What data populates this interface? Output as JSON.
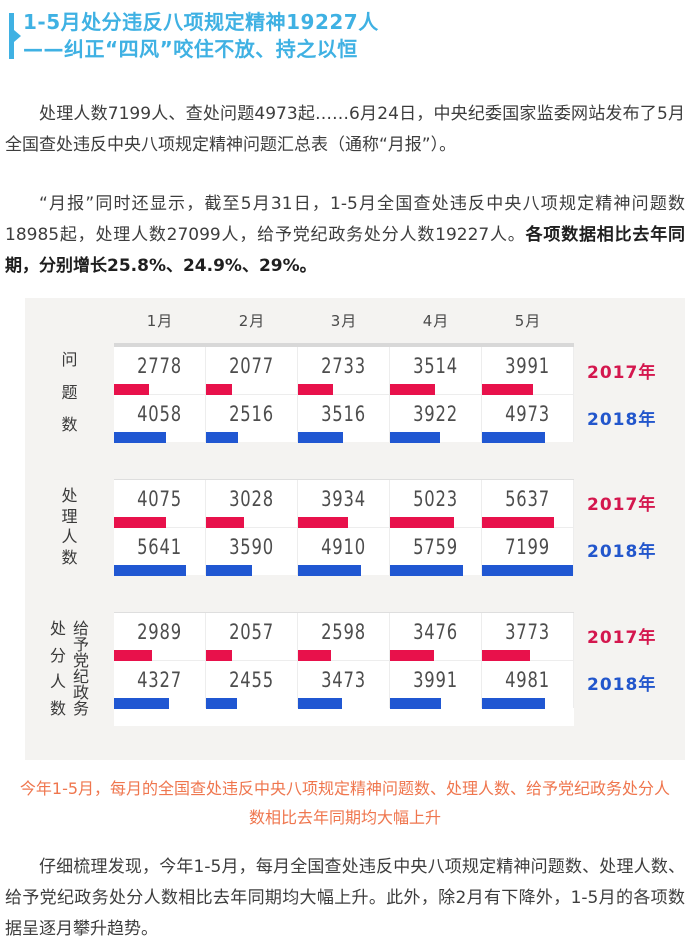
{
  "header": {
    "line1": "1-5月处分违反八项规定精神19227人",
    "line2": "——纠正“四风”咬住不放、持之以恒"
  },
  "paragraphs": {
    "p1": "处理人数7199人、查处问题4973起……6月24日，中央纪委国家监委网站发布了5月全国查处违反中央八项规定精神问题汇总表（通称“月报”）。",
    "p2_normal": "“月报”同时还显示，截至5月31日，1-5月全国查处违反中央八项规定精神问题数18985起，处理人数27099人，给予党纪政务处分人数19227人。",
    "p2_bold": "各项数据相比去年同期，分别增长25.8%、24.9%、29%。",
    "caption": "今年1-5月，每月的全国查处违反中央八项规定精神问题数、处理人数、给予党纪政务处分人数相比去年同期均大幅上升",
    "p3": "仔细梳理发现，今年1-5月，每月全国查处违反中央八项规定精神问题数、处理人数、给予党纪政务处分人数相比去年同期均大幅上升。此外，除2月有下降外，1-5月的各项数据呈逐月攀升趋势。"
  },
  "chart_data": {
    "type": "bar",
    "months": [
      "1月",
      "2月",
      "3月",
      "4月",
      "5月"
    ],
    "series_labels": {
      "red": "2017年",
      "blue": "2018年"
    },
    "colors": {
      "red": "#e8114b",
      "blue": "#2057d2",
      "red_text": "#d4174e",
      "blue_text": "#2256cc"
    },
    "bar_scale_max": 7150,
    "groups": [
      {
        "name": "问题数",
        "label_columns": [
          [
            "问",
            "题",
            "数"
          ]
        ],
        "series": [
          {
            "year": "2017年",
            "color": "red",
            "values": [
              2778,
              2077,
              2733,
              3514,
              3991
            ]
          },
          {
            "year": "2018年",
            "color": "blue",
            "values": [
              4058,
              2516,
              3516,
              3922,
              4973
            ]
          }
        ]
      },
      {
        "name": "处理人数",
        "label_columns": [
          [
            "处",
            "理",
            "人",
            "数"
          ]
        ],
        "series": [
          {
            "year": "2017年",
            "color": "red",
            "values": [
              4075,
              3028,
              3934,
              5023,
              5637
            ]
          },
          {
            "year": "2018年",
            "color": "blue",
            "values": [
              5641,
              3590,
              4910,
              5759,
              7199
            ]
          }
        ]
      },
      {
        "name": "给予党纪政务处分人数",
        "label_columns": [
          [
            "处",
            "分",
            "人",
            "数"
          ],
          [
            "给",
            "予",
            "党",
            "纪",
            "政",
            "务"
          ]
        ],
        "series": [
          {
            "year": "2017年",
            "color": "red",
            "values": [
              2989,
              2057,
              2598,
              3476,
              3773
            ]
          },
          {
            "year": "2018年",
            "color": "blue",
            "values": [
              4327,
              2455,
              3473,
              3991,
              4981
            ]
          }
        ]
      }
    ]
  }
}
